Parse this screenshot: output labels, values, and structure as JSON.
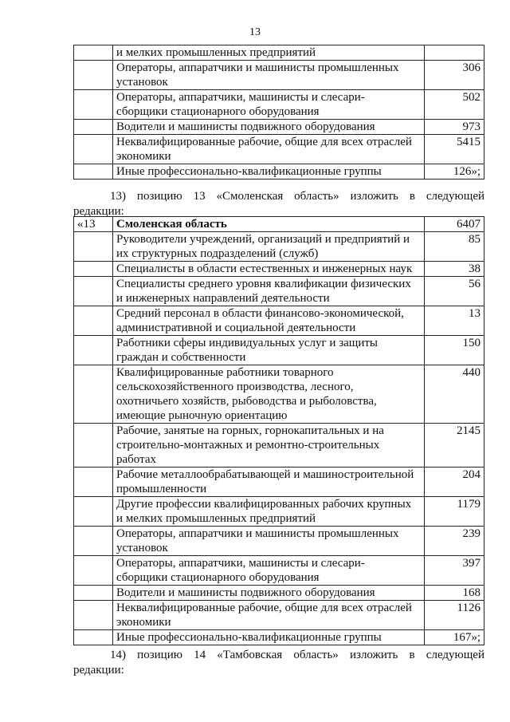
{
  "page_number": "13",
  "table1": {
    "rows": [
      {
        "num": "",
        "name": "и мелких промышленных предприятий",
        "value": ""
      },
      {
        "num": "",
        "name": "Операторы, аппаратчики и машинисты промышленных\nустановок",
        "value": "306"
      },
      {
        "num": "",
        "name": "Операторы, аппаратчики, машинисты и слесари-\nсборщики стационарного оборудования",
        "value": "502"
      },
      {
        "num": "",
        "name": "Водители и машинисты подвижного оборудования",
        "value": "973"
      },
      {
        "num": "",
        "name": "Неквалифицированные рабочие, общие для всех отраслей\nэкономики",
        "value": "5415"
      },
      {
        "num": "",
        "name": "Иные профессионально-квалификационные группы",
        "value": "126»;"
      }
    ]
  },
  "paragraph13": {
    "line1": "13) позицию 13 «Смоленская область» изложить в следующей",
    "line2": "редакции:"
  },
  "table2": {
    "header": {
      "num": "«13",
      "name": "Смоленская область",
      "value": "6407"
    },
    "rows": [
      {
        "name": "Руководители учреждений, организаций и предприятий и\nих структурных подразделений (служб)",
        "value": "85"
      },
      {
        "name": "Специалисты в области естественных и инженерных наук",
        "value": "38"
      },
      {
        "name": "Специалисты среднего уровня квалификации физических\nи инженерных направлений деятельности",
        "value": "56"
      },
      {
        "name": "Средний персонал в области финансово-экономической,\nадминистративной и социальной деятельности",
        "value": "13"
      },
      {
        "name": "Работники сферы индивидуальных услуг и защиты\nграждан и собственности",
        "value": "150"
      },
      {
        "name": "Квалифицированные работники товарного\nсельскохозяйственного производства, лесного,\nохотничьего хозяйств, рыбоводства и рыболовства,\nимеющие рыночную ориентацию",
        "value": "440"
      },
      {
        "name": "Рабочие, занятые на горных, горнокапитальных и на\nстроительно-монтажных и ремонтно-строительных\nработах",
        "value": "2145"
      },
      {
        "name": "Рабочие металлообрабатывающей и машиностроительной\nпромышленности",
        "value": "204"
      },
      {
        "name": "Другие профессии квалифицированных рабочих крупных\nи мелких промышленных предприятий",
        "value": "1179"
      },
      {
        "name": "Операторы, аппаратчики и машинисты промышленных\nустановок",
        "value": "239"
      },
      {
        "name": "Операторы, аппаратчики, машинисты и слесари-\nсборщики стационарного оборудования",
        "value": "397"
      },
      {
        "name": "Водители и машинисты подвижного оборудования",
        "value": "168"
      },
      {
        "name": "Неквалифицированные рабочие, общие для всех отраслей\nэкономики",
        "value": "1126"
      },
      {
        "name": "Иные профессионально-квалификационные группы",
        "value": "167»;"
      }
    ]
  },
  "paragraph14": {
    "line1": "14) позицию 14 «Тамбовская область» изложить в следующей",
    "line2": "редакции:"
  }
}
